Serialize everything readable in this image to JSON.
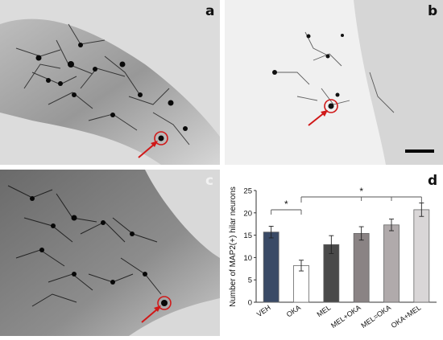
{
  "panels": {
    "a": {
      "label": "a"
    },
    "b": {
      "label": "b"
    },
    "c": {
      "label": "c"
    },
    "d": {
      "label": "d"
    }
  },
  "chart_data": {
    "type": "bar",
    "title": "",
    "xlabel": "",
    "ylabel": "Number of MAP2(+) hilar neurons",
    "categories": [
      "VEH",
      "OKA",
      "MEL",
      "MEL+OKA",
      "MEL=OKA",
      "OKA+MEL"
    ],
    "values": [
      15.7,
      8.2,
      12.9,
      15.4,
      17.3,
      20.7
    ],
    "errors": [
      1.3,
      1.2,
      2.0,
      1.5,
      1.3,
      1.5
    ],
    "ylim": [
      0,
      25
    ],
    "yticks": [
      0,
      5,
      10,
      15,
      20,
      25
    ],
    "colors": [
      "#3a4a66",
      "#ffffff",
      "#4a4a4a",
      "#8a8384",
      "#b0aaab",
      "#d9d6d7"
    ],
    "significance": [
      {
        "from": 0,
        "to": 1,
        "label": "*"
      },
      {
        "from": 1,
        "to": 5,
        "label": "*",
        "ticks": [
          3,
          4
        ]
      }
    ],
    "grid": false,
    "legend": "none"
  }
}
